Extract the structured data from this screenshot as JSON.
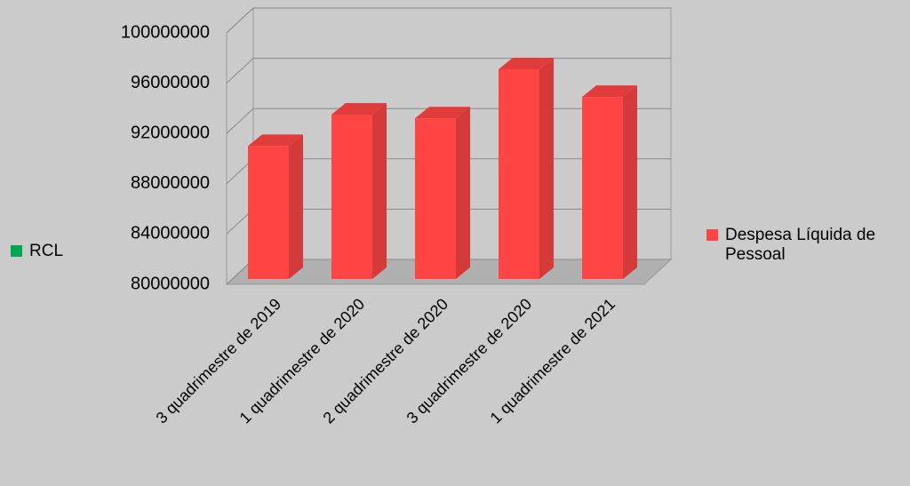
{
  "chart_data": {
    "type": "bar",
    "categories": [
      "3 quadrimestre de 2019",
      "1 quadrimestre de 2020",
      "2 quadrimestre de 2020",
      "3 quadrimestre de 2020",
      "1 quadrimestre de 2021"
    ],
    "series": [
      {
        "name": "RCL",
        "color": "#00a651",
        "values": [
          null,
          null,
          null,
          null,
          null
        ]
      },
      {
        "name": "Despesa Líquida de Pessoal",
        "color": "#ff4444",
        "values": [
          91000000,
          93500000,
          93200000,
          97100000,
          94900000
        ]
      }
    ],
    "ylim": [
      80000000,
      100000000
    ],
    "yticks": [
      80000000,
      84000000,
      88000000,
      92000000,
      96000000,
      100000000
    ],
    "grid": true
  }
}
